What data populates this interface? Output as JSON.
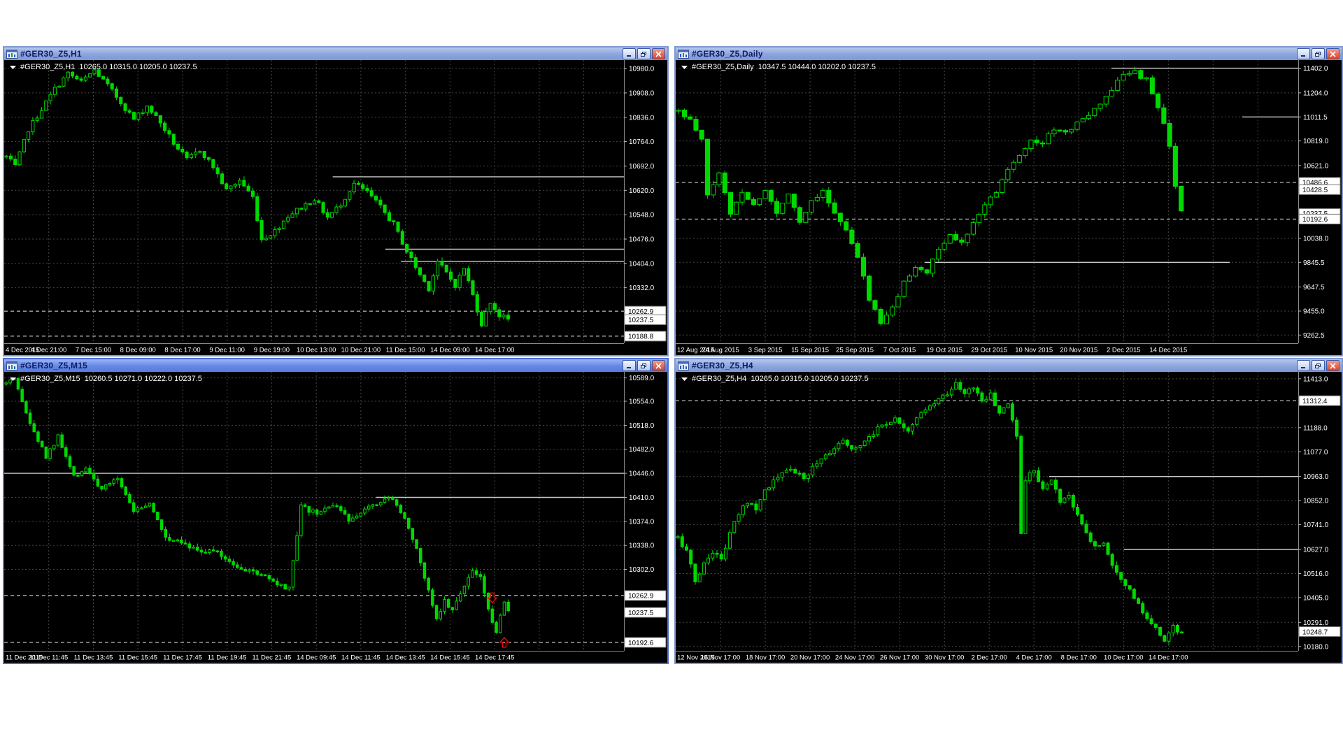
{
  "app": {
    "name": "MetaTrader chart workspace",
    "background": "#ffffff"
  },
  "colors": {
    "chart_bg": "#000000",
    "candle": "#00d900",
    "grid": "#464646",
    "level": "#c9c9c9",
    "dashed_level": "#ececec",
    "axis_text": "#ffffff",
    "tag_bg": "#ffffff",
    "tag_text": "#000000",
    "axis_line": "#8a8a8a",
    "arrow": "#e81010",
    "info_text": "#ffffff"
  },
  "window_controls": {
    "minimize": "minimize",
    "restore": "restore",
    "close": "close"
  },
  "windows": [
    {
      "title": "#GER30_Z5,H1",
      "active": false,
      "info": {
        "symbol": "#GER30_Z5,H1",
        "open": "10265.0",
        "high": "10315.0",
        "low": "10205.0",
        "close": "10237.5"
      },
      "chart_data": {
        "type": "candlestick",
        "y_min": 10168,
        "y_max": 11005,
        "y_labels": [
          "10980.0",
          "10908.0",
          "10836.0",
          "10764.0",
          "10692.0",
          "10620.0",
          "10548.0",
          "10476.0",
          "10404.0",
          "10332.0"
        ],
        "x_labels": [
          "4 Dec 2015",
          "4 Dec 21:00",
          "7 Dec 15:00",
          "8 Dec 09:00",
          "8 Dec 17:00",
          "9 Dec 11:00",
          "9 Dec 19:00",
          "10 Dec 13:00",
          "10 Dec 21:00",
          "11 Dec 15:00",
          "14 Dec 09:00",
          "14 Dec 17:00"
        ],
        "tags": [
          {
            "label": "10262.9",
            "price": 10262.9,
            "dashed": true
          },
          {
            "label": "10237.5",
            "price": 10237.5,
            "dashed": false
          },
          {
            "label": "10188.8",
            "price": 10188.8,
            "dashed": true
          }
        ],
        "levels": [
          {
            "price": 10660,
            "from": 0.53,
            "to": 1
          },
          {
            "price": 10446,
            "from": 0.615,
            "to": 1
          },
          {
            "price": 10410,
            "from": 0.64,
            "to": 1
          }
        ],
        "n_candles": 115,
        "seed": 7,
        "close_keypoints": [
          [
            0,
            10720
          ],
          [
            2,
            10690
          ],
          [
            5,
            10800
          ],
          [
            8,
            10860
          ],
          [
            11,
            10920
          ],
          [
            14,
            10965
          ],
          [
            17,
            10940
          ],
          [
            20,
            10975
          ],
          [
            23,
            10930
          ],
          [
            26,
            10880
          ],
          [
            29,
            10830
          ],
          [
            32,
            10870
          ],
          [
            35,
            10820
          ],
          [
            38,
            10760
          ],
          [
            41,
            10710
          ],
          [
            44,
            10740
          ],
          [
            47,
            10690
          ],
          [
            50,
            10620
          ],
          [
            53,
            10650
          ],
          [
            56,
            10600
          ],
          [
            58,
            10475
          ],
          [
            61,
            10500
          ],
          [
            64,
            10545
          ],
          [
            67,
            10570
          ],
          [
            70,
            10595
          ],
          [
            73,
            10540
          ],
          [
            76,
            10580
          ],
          [
            79,
            10640
          ],
          [
            82,
            10615
          ],
          [
            85,
            10570
          ],
          [
            88,
            10520
          ],
          [
            91,
            10440
          ],
          [
            94,
            10370
          ],
          [
            96,
            10330
          ],
          [
            98,
            10410
          ],
          [
            100,
            10375
          ],
          [
            102,
            10340
          ],
          [
            104,
            10390
          ],
          [
            106,
            10310
          ],
          [
            108,
            10225
          ],
          [
            110,
            10290
          ],
          [
            112,
            10250
          ],
          [
            114,
            10238
          ]
        ]
      }
    },
    {
      "title": "#GER30_Z5,Daily",
      "active": false,
      "info": {
        "symbol": "#GER30_Z5,Daily",
        "open": "10347.5",
        "high": "10444.0",
        "low": "10202.0",
        "close": "10237.5"
      },
      "chart_data": {
        "type": "candlestick",
        "y_min": 9197,
        "y_max": 11467,
        "y_labels": [
          "11402.0",
          "11204.0",
          "11011.5",
          "10819.0",
          "10621.0",
          "10038.0",
          "9845.5",
          "9647.5",
          "9455.0",
          "9262.5"
        ],
        "x_labels": [
          "12 Aug 2015",
          "24 Aug 2015",
          "3 Sep 2015",
          "15 Sep 2015",
          "25 Sep 2015",
          "7 Oct 2015",
          "19 Oct 2015",
          "29 Oct 2015",
          "10 Nov 2015",
          "20 Nov 2015",
          "2 Dec 2015",
          "14 Dec 2015"
        ],
        "tags": [
          {
            "label": "10486.6",
            "price": 10486.6,
            "dashed": true
          },
          {
            "label": "10428.5",
            "price": 10428.5,
            "dashed": false
          },
          {
            "label": "10237.5",
            "price": 10237.5,
            "dashed": false
          },
          {
            "label": "10192.6",
            "price": 10192.6,
            "dashed": true
          }
        ],
        "levels": [
          {
            "price": 11402,
            "from": 0.7,
            "to": 1
          },
          {
            "price": 11011.5,
            "from": 0.91,
            "to": 1
          },
          {
            "price": 9845.5,
            "from": 0.4,
            "to": 0.89
          }
        ],
        "n_candles": 88,
        "seed": 11,
        "close_keypoints": [
          [
            0,
            11060
          ],
          [
            2,
            10980
          ],
          [
            4,
            10820
          ],
          [
            5,
            10380
          ],
          [
            7,
            10560
          ],
          [
            9,
            10240
          ],
          [
            11,
            10420
          ],
          [
            13,
            10300
          ],
          [
            15,
            10430
          ],
          [
            17,
            10230
          ],
          [
            19,
            10410
          ],
          [
            21,
            10170
          ],
          [
            23,
            10340
          ],
          [
            25,
            10430
          ],
          [
            27,
            10230
          ],
          [
            29,
            10100
          ],
          [
            31,
            9880
          ],
          [
            33,
            9560
          ],
          [
            35,
            9350
          ],
          [
            37,
            9480
          ],
          [
            39,
            9680
          ],
          [
            41,
            9820
          ],
          [
            43,
            9760
          ],
          [
            45,
            9950
          ],
          [
            47,
            10060
          ],
          [
            49,
            10000
          ],
          [
            51,
            10180
          ],
          [
            53,
            10300
          ],
          [
            55,
            10420
          ],
          [
            57,
            10600
          ],
          [
            59,
            10720
          ],
          [
            61,
            10820
          ],
          [
            63,
            10800
          ],
          [
            65,
            10920
          ],
          [
            67,
            10870
          ],
          [
            69,
            10980
          ],
          [
            71,
            11010
          ],
          [
            73,
            11120
          ],
          [
            75,
            11230
          ],
          [
            77,
            11350
          ],
          [
            79,
            11390
          ],
          [
            80,
            11300
          ],
          [
            81,
            11340
          ],
          [
            82,
            11180
          ],
          [
            83,
            11080
          ],
          [
            84,
            10940
          ],
          [
            85,
            10760
          ],
          [
            86,
            10470
          ],
          [
            87,
            10240
          ]
        ]
      }
    },
    {
      "title": "#GER30_Z5,M15",
      "active": true,
      "info": {
        "symbol": "#GER30_Z5,M15",
        "open": "10260.5",
        "high": "10271.0",
        "low": "10222.0",
        "close": "10237.5"
      },
      "chart_data": {
        "type": "candlestick",
        "y_min": 10180,
        "y_max": 10598,
        "y_labels": [
          "10589.0",
          "10554.0",
          "10518.0",
          "10482.0",
          "10446.0",
          "10410.0",
          "10374.0",
          "10338.0",
          "10302.0"
        ],
        "x_labels": [
          "11 Dec 2015",
          "11 Dec 11:45",
          "11 Dec 13:45",
          "11 Dec 15:45",
          "11 Dec 17:45",
          "11 Dec 19:45",
          "11 Dec 21:45",
          "14 Dec 09:45",
          "14 Dec 11:45",
          "14 Dec 13:45",
          "14 Dec 15:45",
          "14 Dec 17:45"
        ],
        "tags": [
          {
            "label": "10262.9",
            "price": 10262.9,
            "dashed": true
          },
          {
            "label": "10237.5",
            "price": 10237.5,
            "dashed": false
          },
          {
            "label": "10192.6",
            "price": 10192.6,
            "dashed": true
          }
        ],
        "levels": [
          {
            "price": 10446,
            "from": 0,
            "to": 1
          },
          {
            "price": 10410,
            "from": 0.6,
            "to": 1
          }
        ],
        "arrows": [
          {
            "i": 122,
            "price": 10252,
            "dir": "down"
          },
          {
            "i": 125,
            "price": 10200,
            "dir": "up"
          }
        ],
        "n_candles": 127,
        "seed": 13,
        "close_keypoints": [
          [
            0,
            10580
          ],
          [
            2,
            10585
          ],
          [
            6,
            10520
          ],
          [
            10,
            10470
          ],
          [
            13,
            10500
          ],
          [
            17,
            10440
          ],
          [
            20,
            10455
          ],
          [
            24,
            10420
          ],
          [
            28,
            10440
          ],
          [
            32,
            10390
          ],
          [
            36,
            10400
          ],
          [
            40,
            10350
          ],
          [
            44,
            10345
          ],
          [
            48,
            10330
          ],
          [
            52,
            10330
          ],
          [
            56,
            10315
          ],
          [
            60,
            10300
          ],
          [
            64,
            10295
          ],
          [
            68,
            10278
          ],
          [
            71,
            10272
          ],
          [
            74,
            10395
          ],
          [
            78,
            10385
          ],
          [
            82,
            10400
          ],
          [
            86,
            10375
          ],
          [
            90,
            10395
          ],
          [
            94,
            10405
          ],
          [
            97,
            10410
          ],
          [
            100,
            10380
          ],
          [
            103,
            10330
          ],
          [
            106,
            10270
          ],
          [
            108,
            10230
          ],
          [
            110,
            10255
          ],
          [
            112,
            10240
          ],
          [
            115,
            10280
          ],
          [
            117,
            10300
          ],
          [
            119,
            10290
          ],
          [
            121,
            10240
          ],
          [
            123,
            10210
          ],
          [
            125,
            10250
          ],
          [
            126,
            10238
          ]
        ]
      }
    },
    {
      "title": "#GER30_Z5,H4",
      "active": false,
      "info": {
        "symbol": "#GER30_Z5,H4",
        "open": "10265.0",
        "high": "10315.0",
        "low": "10205.0",
        "close": "10237.5"
      },
      "chart_data": {
        "type": "candlestick",
        "y_min": 10160,
        "y_max": 11445,
        "y_labels": [
          "11413.0",
          "11188.0",
          "11077.0",
          "10963.0",
          "10852.0",
          "10741.0",
          "10627.0",
          "10516.0",
          "10405.0",
          "10291.0",
          "10180.0"
        ],
        "x_labels": [
          "12 Nov 2015",
          "16 Nov 17:00",
          "18 Nov 17:00",
          "20 Nov 17:00",
          "24 Nov 17:00",
          "26 Nov 17:00",
          "30 Nov 17:00",
          "2 Dec 17:00",
          "4 Dec 17:00",
          "8 Dec 17:00",
          "10 Dec 17:00",
          "14 Dec 17:00"
        ],
        "tags": [
          {
            "label": "11312.4",
            "price": 11312.4,
            "dashed": true
          },
          {
            "label": "10248.7",
            "price": 10248.7,
            "dashed": false
          }
        ],
        "levels": [
          {
            "price": 10963,
            "from": 0.6,
            "to": 1
          },
          {
            "price": 10627,
            "from": 0.72,
            "to": 1
          }
        ],
        "n_candles": 117,
        "seed": 17,
        "close_keypoints": [
          [
            0,
            10680
          ],
          [
            2,
            10620
          ],
          [
            4,
            10480
          ],
          [
            6,
            10560
          ],
          [
            8,
            10620
          ],
          [
            10,
            10580
          ],
          [
            12,
            10700
          ],
          [
            14,
            10790
          ],
          [
            16,
            10850
          ],
          [
            18,
            10820
          ],
          [
            20,
            10900
          ],
          [
            23,
            10960
          ],
          [
            26,
            11000
          ],
          [
            29,
            10950
          ],
          [
            32,
            11030
          ],
          [
            35,
            11080
          ],
          [
            38,
            11120
          ],
          [
            41,
            11090
          ],
          [
            44,
            11150
          ],
          [
            47,
            11200
          ],
          [
            50,
            11230
          ],
          [
            53,
            11180
          ],
          [
            56,
            11250
          ],
          [
            59,
            11300
          ],
          [
            62,
            11350
          ],
          [
            64,
            11390
          ],
          [
            66,
            11340
          ],
          [
            68,
            11380
          ],
          [
            70,
            11310
          ],
          [
            72,
            11340
          ],
          [
            74,
            11250
          ],
          [
            76,
            11300
          ],
          [
            78,
            11150
          ],
          [
            79,
            10700
          ],
          [
            80,
            10950
          ],
          [
            82,
            11000
          ],
          [
            84,
            10900
          ],
          [
            86,
            10950
          ],
          [
            88,
            10850
          ],
          [
            90,
            10880
          ],
          [
            92,
            10780
          ],
          [
            94,
            10700
          ],
          [
            96,
            10640
          ],
          [
            98,
            10660
          ],
          [
            100,
            10560
          ],
          [
            102,
            10500
          ],
          [
            104,
            10440
          ],
          [
            106,
            10370
          ],
          [
            108,
            10300
          ],
          [
            110,
            10260
          ],
          [
            112,
            10210
          ],
          [
            114,
            10270
          ],
          [
            116,
            10240
          ]
        ]
      }
    }
  ]
}
